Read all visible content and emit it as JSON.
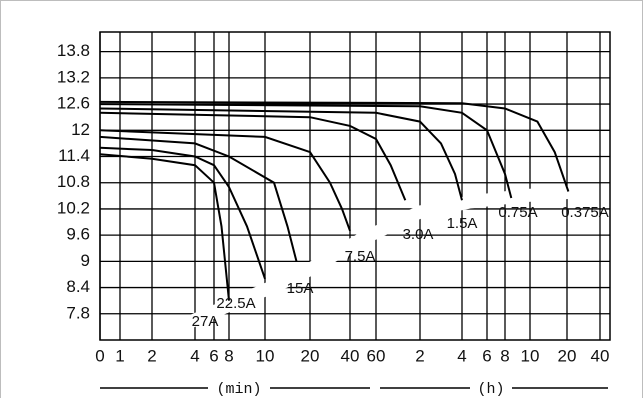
{
  "chart_data": {
    "type": "line",
    "ylim": [
      7.2,
      14.25
    ],
    "yticks": [
      7.8,
      8.4,
      9.0,
      9.6,
      10.2,
      10.8,
      11.4,
      12.0,
      12.6,
      13.2,
      13.8
    ],
    "xlim": [
      0,
      2400
    ],
    "xticks": [
      0,
      1,
      2,
      4,
      6,
      8,
      10,
      20,
      40,
      60,
      {
        "value": 120,
        "label": "2"
      },
      {
        "value": 240,
        "label": "4"
      },
      {
        "value": 360,
        "label": "6"
      },
      {
        "value": 480,
        "label": "8"
      },
      {
        "value": 600,
        "label": "10"
      },
      {
        "value": 1200,
        "label": "20"
      },
      {
        "value": 2400,
        "label": "40"
      }
    ],
    "grid": true,
    "annotations": [
      "(min)",
      "(h)"
    ],
    "series": [
      {
        "name": "27A",
        "color": "#000000",
        "x": [
          0,
          2,
          4,
          6,
          7,
          8
        ],
        "values": [
          11.45,
          11.35,
          11.2,
          10.8,
          9.8,
          8.1
        ]
      },
      {
        "name": "22.5A",
        "color": "#000000",
        "x": [
          0,
          2,
          4,
          6,
          8,
          9,
          10
        ],
        "values": [
          11.6,
          11.55,
          11.4,
          11.2,
          10.7,
          9.8,
          8.6
        ]
      },
      {
        "name": "15A",
        "color": "#000000",
        "x": [
          0,
          4,
          8,
          12,
          15,
          17
        ],
        "values": [
          11.85,
          11.7,
          11.4,
          10.8,
          9.8,
          9.0
        ]
      },
      {
        "name": "7.5A",
        "color": "#000000",
        "x": [
          0,
          10,
          20,
          30,
          36,
          40
        ],
        "values": [
          12.0,
          11.85,
          11.5,
          10.8,
          10.2,
          9.7
        ]
      },
      {
        "name": "3.0A",
        "color": "#000000",
        "x": [
          0,
          20,
          40,
          60,
          80,
          100
        ],
        "values": [
          12.4,
          12.3,
          12.1,
          11.8,
          11.2,
          10.4
        ]
      },
      {
        "name": "1.5A",
        "color": "#000000",
        "x": [
          0,
          60,
          120,
          180,
          220,
          240
        ],
        "values": [
          12.5,
          12.4,
          12.2,
          11.7,
          11.0,
          10.4
        ]
      },
      {
        "name": "0.75A",
        "color": "#000000",
        "x": [
          0,
          120,
          240,
          360,
          480,
          510
        ],
        "values": [
          12.6,
          12.55,
          12.4,
          12.0,
          11.0,
          10.45
        ]
      },
      {
        "name": "0.375A",
        "color": "#000000",
        "x": [
          0,
          240,
          480,
          720,
          1000,
          1250
        ],
        "values": [
          12.65,
          12.62,
          12.5,
          12.2,
          11.5,
          10.6
        ]
      }
    ]
  }
}
